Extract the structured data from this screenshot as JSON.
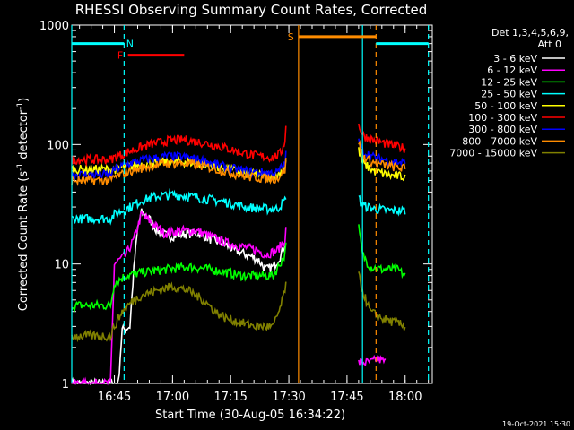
{
  "chart_data": {
    "type": "line",
    "title": "RHESSI Observing Summary Count Rates, Corrected",
    "ylabel_main": "Corrected Count Rate (s",
    "ylabel_sup1": "-1",
    "ylabel_mid": " detector",
    "ylabel_sup2": "-1",
    "ylabel_end": ")",
    "xlabel": "Start Time (30-Aug-05 16:34:22)",
    "timestamp": "19-Oct-2021 15:30",
    "y_scale": "log",
    "ylim": [
      1,
      1000
    ],
    "y_ticks": [
      {
        "v": 1,
        "label": "1"
      },
      {
        "v": 10,
        "label": "10"
      },
      {
        "v": 100,
        "label": "100"
      },
      {
        "v": 1000,
        "label": "1000"
      }
    ],
    "xlim_min": [
      0,
      93
    ],
    "x_ticks": [
      {
        "m": 11,
        "label": "16:45"
      },
      {
        "m": 26,
        "label": "17:00"
      },
      {
        "m": 41,
        "label": "17:15"
      },
      {
        "m": 56,
        "label": "17:30"
      },
      {
        "m": 71,
        "label": "17:45"
      },
      {
        "m": 86,
        "label": "18:00"
      }
    ],
    "legend": {
      "header1": "Det 1,3,4,5,6,9,",
      "header2": "Att 0",
      "position": "right",
      "entries": [
        {
          "label": "3 - 6 keV",
          "color": "#ffffff"
        },
        {
          "label": "6 - 12 keV",
          "color": "#ff00ff"
        },
        {
          "label": "12 - 25 keV",
          "color": "#00ff00"
        },
        {
          "label": "25 - 50 keV",
          "color": "#00ffff"
        },
        {
          "label": "50 - 100 keV",
          "color": "#ffff00"
        },
        {
          "label": "100 - 300 keV",
          "color": "#ff0000"
        },
        {
          "label": "300 - 800 keV",
          "color": "#0000ff"
        },
        {
          "label": "800 - 7000 keV",
          "color": "#ff8c00"
        },
        {
          "label": "7000 - 15000 keV",
          "color": "#808000"
        }
      ]
    },
    "gap_min": [
      55.5,
      74
    ],
    "series": [
      {
        "name": "3 - 6 keV",
        "color": "#000000",
        "seg1": [
          [
            0,
            1.0
          ],
          [
            12,
            1.0
          ],
          [
            13,
            2.8
          ],
          [
            15,
            3.0
          ],
          [
            16,
            9
          ],
          [
            17,
            20
          ],
          [
            18,
            27
          ],
          [
            20,
            24
          ],
          [
            22,
            19
          ],
          [
            25,
            17
          ],
          [
            30,
            18
          ],
          [
            33,
            18
          ],
          [
            36,
            16
          ],
          [
            39,
            15
          ],
          [
            42,
            13
          ],
          [
            45,
            12
          ],
          [
            48,
            11
          ],
          [
            50,
            9
          ],
          [
            52,
            9.5
          ],
          [
            54,
            12
          ],
          [
            55,
            15
          ]
        ],
        "seg2": []
      },
      {
        "name": "6 - 12 keV",
        "color": "#ff00ff",
        "seg1": [
          [
            0,
            1.0
          ],
          [
            10,
            1.0
          ],
          [
            11,
            10
          ],
          [
            14,
            12
          ],
          [
            16,
            16
          ],
          [
            18,
            26
          ],
          [
            20,
            23
          ],
          [
            24,
            18
          ],
          [
            28,
            19
          ],
          [
            32,
            19
          ],
          [
            36,
            17
          ],
          [
            40,
            15
          ],
          [
            44,
            14
          ],
          [
            48,
            13
          ],
          [
            50,
            12
          ],
          [
            53,
            13
          ],
          [
            55,
            16
          ],
          [
            55.4,
            22
          ]
        ],
        "seg2": [
          [
            74,
            1.5
          ],
          [
            77,
            1.5
          ],
          [
            79,
            1.6
          ],
          [
            81,
            1.5
          ]
        ]
      },
      {
        "name": "12 - 25 keV",
        "color": "#00ff00",
        "seg1": [
          [
            0,
            4.5
          ],
          [
            10,
            4.5
          ],
          [
            11,
            7
          ],
          [
            14,
            8
          ],
          [
            18,
            8.5
          ],
          [
            24,
            9
          ],
          [
            30,
            9.5
          ],
          [
            36,
            9
          ],
          [
            40,
            8.5
          ],
          [
            44,
            8
          ],
          [
            48,
            8
          ],
          [
            52,
            8
          ],
          [
            55,
            12
          ],
          [
            55.4,
            20
          ]
        ],
        "seg2": [
          [
            74,
            20
          ],
          [
            75,
            12
          ],
          [
            77,
            9.5
          ],
          [
            80,
            9
          ],
          [
            84,
            9
          ],
          [
            86,
            8
          ]
        ]
      },
      {
        "name": "25 - 50 keV",
        "color": "#00ffff",
        "seg1": [
          [
            0,
            24
          ],
          [
            10,
            24
          ],
          [
            11,
            26
          ],
          [
            15,
            30
          ],
          [
            18,
            34
          ],
          [
            22,
            37
          ],
          [
            26,
            38
          ],
          [
            30,
            37
          ],
          [
            35,
            35
          ],
          [
            40,
            33
          ],
          [
            45,
            30
          ],
          [
            50,
            29
          ],
          [
            53,
            29
          ],
          [
            55,
            34
          ],
          [
            55.4,
            40
          ]
        ],
        "seg2": [
          [
            74,
            36
          ],
          [
            75,
            31
          ],
          [
            78,
            29
          ],
          [
            82,
            28
          ],
          [
            86,
            28
          ]
        ]
      },
      {
        "name": "50 - 100 keV",
        "color": "#ffff00",
        "seg1": [
          [
            0,
            62
          ],
          [
            10,
            62
          ],
          [
            11,
            62
          ],
          [
            15,
            66
          ],
          [
            20,
            70
          ],
          [
            25,
            72
          ],
          [
            30,
            72
          ],
          [
            35,
            68
          ],
          [
            40,
            63
          ],
          [
            45,
            57
          ],
          [
            50,
            55
          ],
          [
            53,
            55
          ],
          [
            55,
            65
          ],
          [
            55.4,
            80
          ]
        ],
        "seg2": [
          [
            74,
            90
          ],
          [
            75,
            70
          ],
          [
            78,
            60
          ],
          [
            82,
            55
          ],
          [
            86,
            54
          ]
        ]
      },
      {
        "name": "100 - 300 keV",
        "color": "#ff0000",
        "seg1": [
          [
            0,
            75
          ],
          [
            10,
            75
          ],
          [
            11,
            78
          ],
          [
            15,
            88
          ],
          [
            20,
            100
          ],
          [
            25,
            108
          ],
          [
            29,
            110
          ],
          [
            33,
            105
          ],
          [
            38,
            97
          ],
          [
            43,
            87
          ],
          [
            48,
            80
          ],
          [
            52,
            78
          ],
          [
            54,
            85
          ],
          [
            55,
            110
          ],
          [
            55.4,
            160
          ]
        ],
        "seg2": [
          [
            74,
            150
          ],
          [
            75,
            120
          ],
          [
            78,
            108
          ],
          [
            82,
            100
          ],
          [
            86,
            93
          ]
        ]
      },
      {
        "name": "300 - 800 keV",
        "color": "#0000ff",
        "seg1": [
          [
            0,
            56
          ],
          [
            10,
            56
          ],
          [
            11,
            62
          ],
          [
            15,
            70
          ],
          [
            20,
            76
          ],
          [
            25,
            80
          ],
          [
            30,
            78
          ],
          [
            35,
            72
          ],
          [
            40,
            64
          ],
          [
            45,
            60
          ],
          [
            50,
            58
          ],
          [
            53,
            58
          ],
          [
            55,
            70
          ],
          [
            55.4,
            90
          ]
        ],
        "seg2": [
          [
            74,
            110
          ],
          [
            75,
            88
          ],
          [
            78,
            78
          ],
          [
            82,
            73
          ],
          [
            86,
            70
          ]
        ]
      },
      {
        "name": "800 - 7000 keV",
        "color": "#ff8c00",
        "seg1": [
          [
            0,
            50
          ],
          [
            10,
            50
          ],
          [
            11,
            53
          ],
          [
            15,
            60
          ],
          [
            20,
            66
          ],
          [
            25,
            70
          ],
          [
            30,
            69
          ],
          [
            35,
            65
          ],
          [
            40,
            59
          ],
          [
            45,
            54
          ],
          [
            50,
            52
          ],
          [
            53,
            52
          ],
          [
            55,
            62
          ],
          [
            55.4,
            80
          ]
        ],
        "seg2": [
          [
            74,
            105
          ],
          [
            75,
            80
          ],
          [
            78,
            70
          ],
          [
            82,
            66
          ],
          [
            86,
            63
          ]
        ]
      },
      {
        "name": "7000 - 15000 keV",
        "color": "#808000",
        "seg1": [
          [
            0,
            2.5
          ],
          [
            10,
            2.5
          ],
          [
            11,
            3.0
          ],
          [
            13,
            4.0
          ],
          [
            16,
            5.0
          ],
          [
            18,
            5.5
          ],
          [
            22,
            6.0
          ],
          [
            26,
            6.5
          ],
          [
            30,
            6.0
          ],
          [
            34,
            5.0
          ],
          [
            37,
            4.0
          ],
          [
            40,
            3.5
          ],
          [
            44,
            3.2
          ],
          [
            48,
            3.0
          ],
          [
            52,
            3.0
          ],
          [
            54,
            4.5
          ],
          [
            55.4,
            7
          ]
        ],
        "seg2": [
          [
            74,
            8
          ],
          [
            75,
            6
          ],
          [
            77,
            4
          ],
          [
            80,
            3.5
          ],
          [
            84,
            3.2
          ],
          [
            86,
            3
          ]
        ]
      }
    ],
    "vlines": [
      {
        "m": 0,
        "color": "#00ffff",
        "style": "solid"
      },
      {
        "m": 13.5,
        "color": "#00ffff",
        "style": "dashed"
      },
      {
        "m": 58.5,
        "color": "#ff8c00",
        "style": "solid"
      },
      {
        "m": 75,
        "color": "#00ffff",
        "style": "solid"
      },
      {
        "m": 78.5,
        "color": "#ff8c00",
        "style": "dashed"
      },
      {
        "m": 92,
        "color": "#00ffff",
        "style": "dashed"
      }
    ],
    "flags": [
      {
        "label": "N",
        "color": "#00ffff",
        "start": 0,
        "end": 13.5,
        "label_at": 15,
        "level": 700
      },
      {
        "label": "F",
        "color": "#ff0000",
        "start": 14.5,
        "end": 29,
        "label_at": 12.5,
        "level": 560
      },
      {
        "label": "S",
        "color": "#ff8c00",
        "start": 58.5,
        "end": 78.5,
        "label_at": 56.5,
        "level": 800
      },
      {
        "label": "",
        "color": "#00ffff",
        "start": 78.5,
        "end": 92,
        "label_at": 0,
        "level": 700
      }
    ]
  }
}
